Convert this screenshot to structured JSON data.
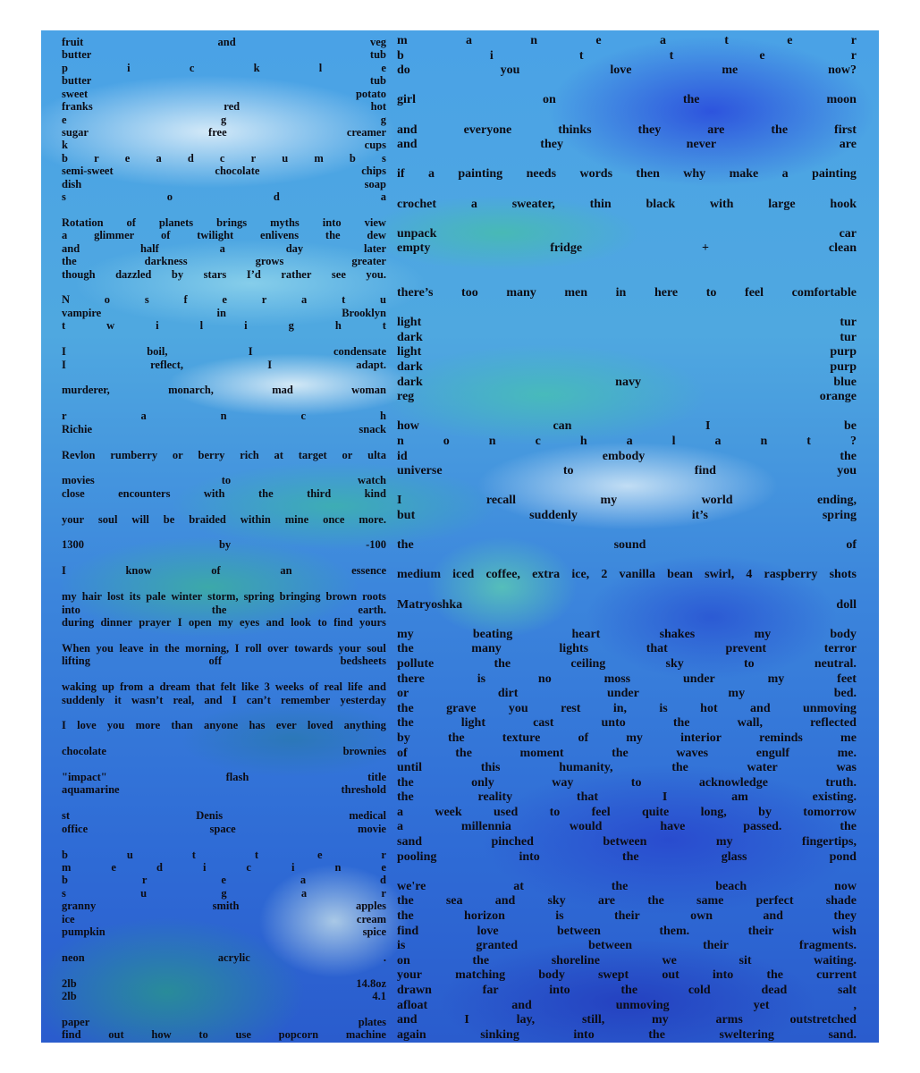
{
  "colors": {
    "page": "#ffffff",
    "text": "#0c0c14",
    "paint_blue": "#3c86dc",
    "paint_teal": "#46bea8",
    "paint_white": "#e1f0fa",
    "paint_deep_blue": "#2a46dc"
  },
  "left_column": {
    "lines": [
      "fruit and veg",
      "butter tub",
      "p i c k l e",
      "butter tub",
      "sweet potato",
      "franks red hot",
      "e g g",
      "sugar free creamer",
      "k cups",
      "b r e a d c r u m b s",
      "semi-sweet chocolate chips",
      "dish soap",
      "s o d a",
      "",
      "Rotation of planets brings myths into view",
      "a glimmer of twilight enlivens the dew",
      "and half a day later",
      "the darkness grows greater",
      "though dazzled by stars I’d rather see you.",
      "",
      "N o s f e r a t u",
      "vampire in Brooklyn",
      "t w i l i g h t",
      "",
      "I boil, I condensate",
      "I reflect, I adapt.",
      "",
      "murderer, monarch, mad woman",
      "",
      "r a n c h",
      "Richie snack",
      "",
      "Revlon rumberry or berry rich at target or ulta",
      "",
      "movies to watch",
      "close encounters with the third kind",
      "",
      "your soul will be braided within mine once more.",
      "",
      "1300 by -100",
      "",
      "I know of an essence",
      "",
      "my hair lost its pale winter storm, spring bringing brown roots",
      "into the earth.",
      "during dinner prayer I open my eyes and look to find yours",
      "",
      "When you leave in the morning, I roll over towards your soul",
      "lifting off bedsheets",
      "",
      "waking up from a dream that felt like 3 weeks of real life and",
      "suddenly it wasn’t real, and I can’t remember yesterday",
      "",
      "I love you more than anyone has ever loved anything",
      "",
      "chocolate brownies",
      "",
      "\"impact\" flash title",
      "aquamarine threshold",
      "",
      "st Denis medical",
      "office space movie",
      "",
      "b u t t e r",
      "m e d i c i n e",
      "b r e a d",
      "s u g a r",
      "granny smith apples",
      "ice cream",
      "pumpkin spice",
      "",
      "neon acrylic .",
      "",
      "2lb 14.8oz",
      "2lb 4.1",
      "",
      "paper plates",
      "find out how to use popcorn machine"
    ]
  },
  "right_column": {
    "lines": [
      "m a n e a t e r",
      "b i t t e r",
      "do you love me now?",
      "",
      "girl on the moon",
      "",
      "and everyone thinks they are the first",
      "and they never are",
      "",
      "if a painting needs words then why make a painting",
      "",
      "crochet a sweater, thin black with large hook",
      "",
      "unpack car",
      "empty fridge + clean",
      "",
      "",
      "there’s too many men in here to feel comfortable",
      "",
      "light tur",
      "dark tur",
      "light purp",
      "dark purp",
      "dark navy blue",
      "reg orange",
      "",
      "how can I be",
      "n o n c h a l a n t ?",
      "id embody the",
      "universe to find you",
      "",
      "I recall my world ending,",
      "but suddenly it’s spring",
      "",
      "the sound of",
      "",
      "medium iced coffee, extra ice, 2 vanilla bean swirl, 4 raspberry shots",
      "",
      "Matryoshka doll",
      "",
      "my beating heart shakes my body",
      "the many lights that prevent terror",
      "pollute the ceiling sky to neutral.",
      "there is no moss under my feet",
      "or dirt under my bed.",
      "the grave you rest in, is hot and unmoving",
      "the light cast unto the wall, reflected",
      "by the texture of my interior reminds me",
      "of the moment the waves engulf me.",
      "until this humanity, the water was",
      "the only way to acknowledge truth.",
      "the reality that I am existing.",
      "a week used to feel quite long, by tomorrow",
      "a millennia would have passed. the",
      "sand pinched between my fingertips,",
      "pooling into the glass pond",
      "",
      "we're at the beach now",
      "the sea and sky are the same perfect shade",
      "the horizon is their own and they",
      "find love between them. their wish",
      "is granted between their fragments.",
      "on the shoreline we sit waiting.",
      "your matching body swept out into the current",
      "drawn far into the cold dead salt",
      "afloat and unmoving yet ,",
      "and I lay, still, my arms outstretched",
      "again sinking into the sweltering sand."
    ]
  }
}
